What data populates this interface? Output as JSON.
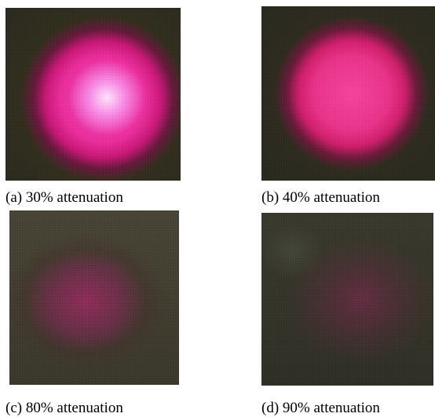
{
  "figure": {
    "panels": [
      {
        "caption": "(a) 30% attenuation"
      },
      {
        "caption": "(b) 40% attenuation"
      },
      {
        "caption": "(c) 80% attenuation"
      },
      {
        "caption": "(d) 90% attenuation"
      }
    ]
  },
  "colors": {
    "background": "#ffffff",
    "spot_bright": "#ea2f9e",
    "spot_dim": "#7a2d55",
    "surround": "#2b2b20"
  }
}
